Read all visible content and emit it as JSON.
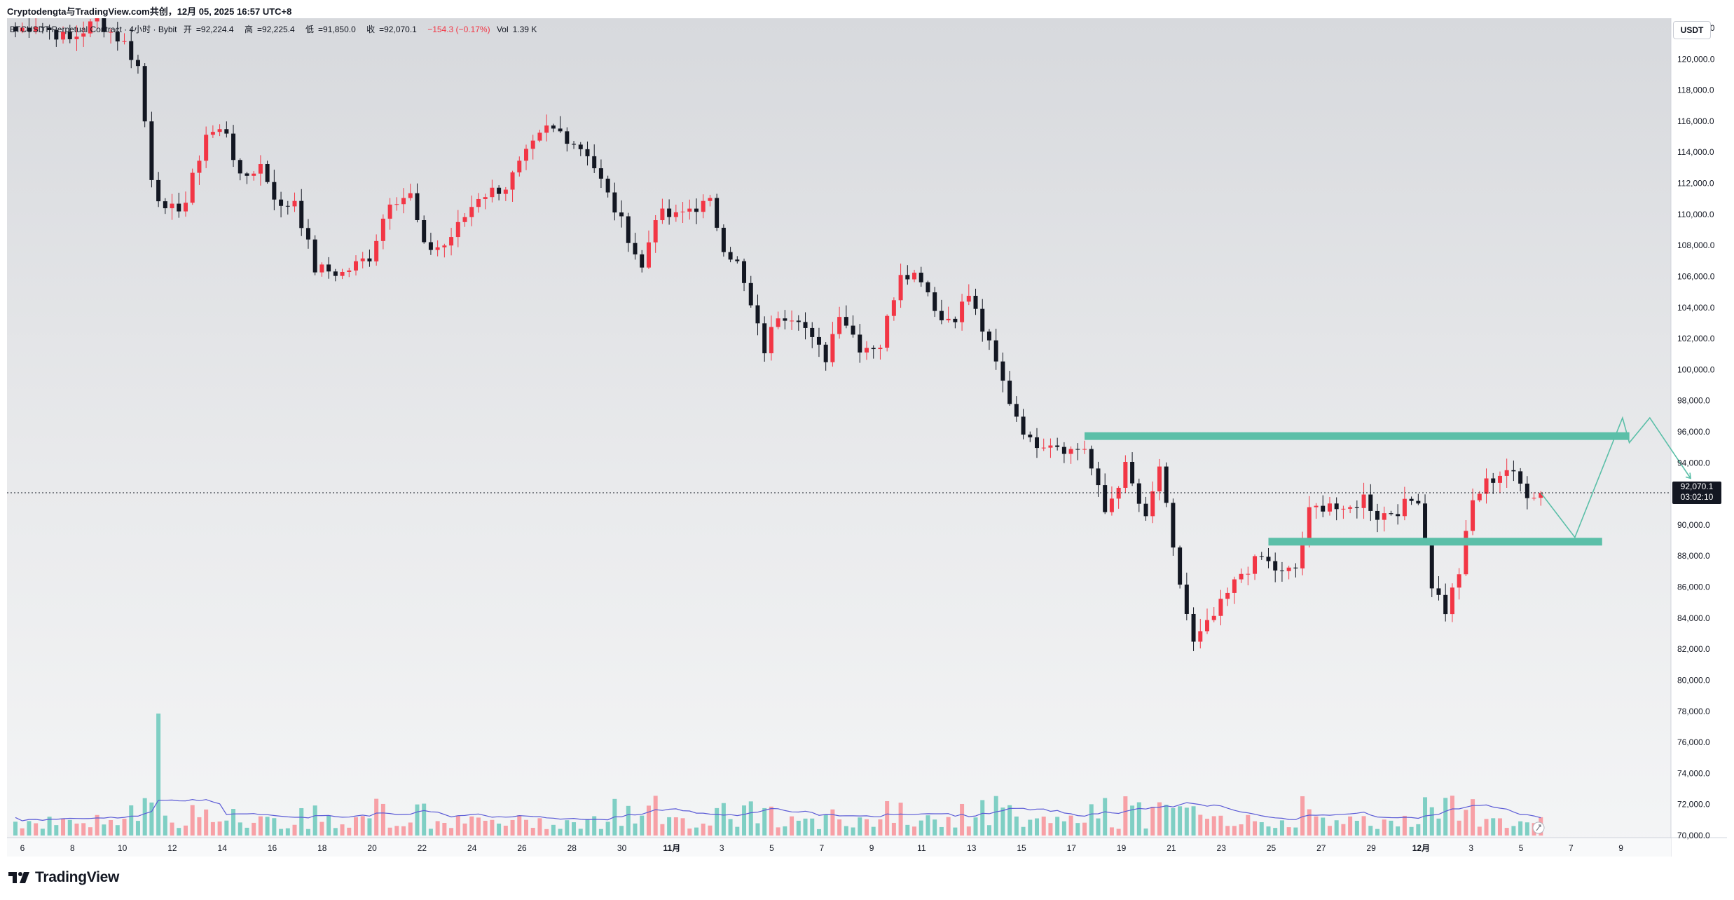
{
  "header": {
    "watermark": "Cryptodengta与TradingView.com共创，12月 05, 2025 16:57 UTC+8"
  },
  "legend": {
    "symbol": "BTCUSDT Perpetual Contract · 4小时 · Bybit",
    "open_label": "开",
    "open": "=92,224.4",
    "high_label": "高",
    "high": "=92,225.4",
    "low_label": "低",
    "low": "=91,850.0",
    "close_label": "收",
    "close": "=92,070.1",
    "change": "−154.3 (−0.17%)",
    "vol_label": "Vol",
    "vol": "1.39 K"
  },
  "price_scale": {
    "currency": "USDT",
    "last_price": "92,070.1",
    "countdown": "03:02:10"
  },
  "brand": {
    "name": "TradingView"
  },
  "colors": {
    "up": "#f23645",
    "down": "#131722",
    "zone": "#5bbfa8",
    "ma": "#5b5bd6",
    "vol_up": "#f7a0a6",
    "vol_down": "#7fcfc4"
  },
  "chart_data": {
    "type": "candlestick",
    "y_axis": {
      "min": 70000,
      "max": 122000,
      "step": 2000,
      "tick_labels": [
        "70,000.0",
        "72,000.0",
        "74,000.0",
        "76,000.0",
        "78,000.0",
        "80,000.0",
        "82,000.0",
        "84,000.0",
        "86,000.0",
        "88,000.0",
        "90,000.0",
        "92,000.0",
        "94,000.0",
        "96,000.0",
        "98,000.0",
        "100,000.0",
        "102,000.0",
        "104,000.0",
        "106,000.0",
        "108,000.0",
        "110,000.0",
        "112,000.0",
        "114,000.0",
        "116,000.0",
        "118,000.0",
        "120,000.0",
        "122,000.0"
      ]
    },
    "x_axis": {
      "tick_labels": [
        "6",
        "8",
        "10",
        "12",
        "14",
        "16",
        "18",
        "20",
        "22",
        "24",
        "26",
        "28",
        "30",
        "11月",
        "3",
        "5",
        "7",
        "9",
        "11",
        "13",
        "15",
        "17",
        "19",
        "21",
        "23",
        "25",
        "27",
        "29",
        "12月",
        "3",
        "5",
        "7",
        "9"
      ],
      "bold_labels": [
        "11月",
        "12月"
      ],
      "start_index": 0
    },
    "keypoints": [
      [
        0,
        121800
      ],
      [
        3,
        122300
      ],
      [
        8,
        121200
      ],
      [
        12,
        122500
      ],
      [
        16,
        121000
      ],
      [
        18,
        119500
      ],
      [
        20,
        112500
      ],
      [
        22,
        110000
      ],
      [
        25,
        110800
      ],
      [
        28,
        115200
      ],
      [
        31,
        115400
      ],
      [
        33,
        112200
      ],
      [
        36,
        113200
      ],
      [
        39,
        110300
      ],
      [
        41,
        111000
      ],
      [
        44,
        106500
      ],
      [
        48,
        106200
      ],
      [
        52,
        107300
      ],
      [
        55,
        111000
      ],
      [
        58,
        111200
      ],
      [
        60,
        107800
      ],
      [
        63,
        108000
      ],
      [
        65,
        109200
      ],
      [
        68,
        111200
      ],
      [
        72,
        111800
      ],
      [
        75,
        113800
      ],
      [
        78,
        115500
      ],
      [
        80,
        115300
      ],
      [
        84,
        114000
      ],
      [
        87,
        111200
      ],
      [
        90,
        108600
      ],
      [
        92,
        106500
      ],
      [
        94,
        110000
      ],
      [
        97,
        109800
      ],
      [
        99,
        110400
      ],
      [
        102,
        110700
      ],
      [
        104,
        108000
      ],
      [
        106,
        106800
      ],
      [
        108,
        104000
      ],
      [
        110,
        101300
      ],
      [
        112,
        103600
      ],
      [
        115,
        103500
      ],
      [
        117,
        101800
      ],
      [
        119,
        100800
      ],
      [
        121,
        103800
      ],
      [
        124,
        101500
      ],
      [
        127,
        101600
      ],
      [
        130,
        106400
      ],
      [
        133,
        106000
      ],
      [
        136,
        103200
      ],
      [
        138,
        103500
      ],
      [
        140,
        104800
      ],
      [
        143,
        101500
      ],
      [
        146,
        98000
      ],
      [
        149,
        95300
      ],
      [
        152,
        95400
      ],
      [
        155,
        94800
      ],
      [
        157,
        95000
      ],
      [
        160,
        90800
      ],
      [
        163,
        93700
      ],
      [
        166,
        90200
      ],
      [
        168,
        93800
      ],
      [
        170,
        88200
      ],
      [
        173,
        82300
      ],
      [
        176,
        84100
      ],
      [
        180,
        86900
      ],
      [
        183,
        87900
      ],
      [
        186,
        86800
      ],
      [
        188,
        87200
      ],
      [
        190,
        90800
      ],
      [
        193,
        91500
      ],
      [
        195,
        90600
      ],
      [
        198,
        91800
      ],
      [
        200,
        90600
      ],
      [
        203,
        91000
      ],
      [
        206,
        91800
      ],
      [
        208,
        86200
      ],
      [
        210,
        84500
      ],
      [
        212,
        87000
      ],
      [
        214,
        91500
      ],
      [
        216,
        92700
      ],
      [
        219,
        93600
      ],
      [
        222,
        92100
      ],
      [
        224,
        92000
      ]
    ],
    "candle_count": 225,
    "volume_spike_index": 21,
    "moving_average": "volume MA",
    "annotations": [
      {
        "type": "zone",
        "label": "resistance",
        "price": 95700,
        "from_index": 157,
        "to_index": 237
      },
      {
        "type": "zone",
        "label": "support",
        "price": 88900,
        "from_index": 184,
        "to_index": 233
      },
      {
        "type": "projection",
        "points": [
          [
            224,
            92070
          ],
          [
            229,
            89200
          ],
          [
            236,
            96900
          ],
          [
            237,
            95300
          ],
          [
            240,
            96900
          ],
          [
            246,
            93000
          ]
        ]
      }
    ],
    "last_price": 92070.1,
    "grid": false,
    "legend": "top-left"
  }
}
